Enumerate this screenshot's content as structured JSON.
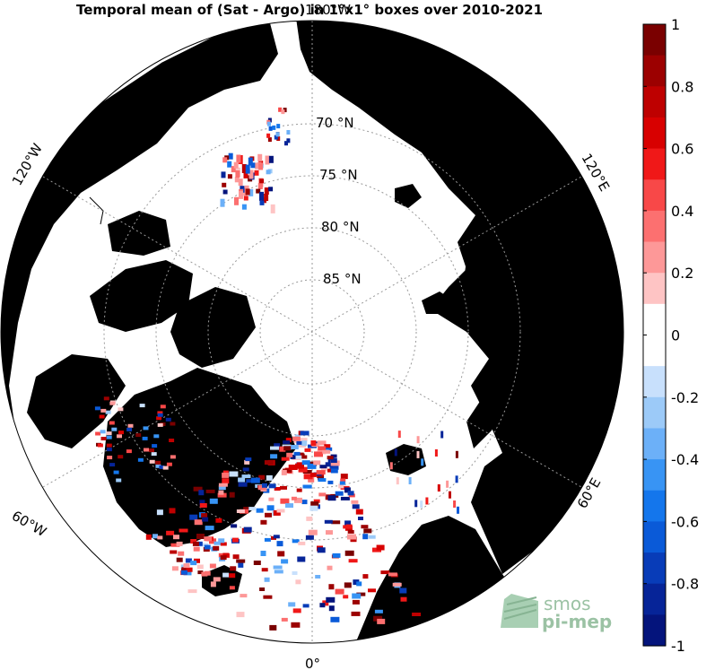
{
  "map": {
    "title": "Temporal mean of (Sat - Argo) in 1°x1° boxes over 2010-2021",
    "projection": "north-polar-stereographic",
    "colors": {
      "land": "#7f7f7f",
      "ocean": "#ffffff",
      "coast": "#000000",
      "graticule": "#9a9a9a"
    },
    "latitude_labels": [
      "70 °N",
      "75 °N",
      "80 °N",
      "85 °N"
    ],
    "longitude_labels": {
      "top": "180°W",
      "bottom": "0°",
      "left_lower": "60°W",
      "left_upper": "120°W",
      "right_lower": "60°E",
      "right_upper": "120°E"
    },
    "data_regions": [
      {
        "region": "Barents Sea / Norwegian Sea",
        "dominant_sign": "mixed",
        "notes": "dense mixed red/blue boxes"
      },
      {
        "region": "Beaufort Sea",
        "dominant_sign": "positive"
      },
      {
        "region": "Baffin Bay",
        "dominant_sign": "mixed"
      }
    ]
  },
  "colorbar": {
    "ticks": [
      "1",
      "0.8",
      "0.6",
      "0.4",
      "0.2",
      "0",
      "-0.2",
      "-0.4",
      "-0.6",
      "-0.8",
      "-1"
    ],
    "range": [
      -1,
      1
    ],
    "step": 0.1,
    "colors_top_to_bottom": [
      "#7a0000",
      "#9c0000",
      "#be0000",
      "#d80000",
      "#f01818",
      "#f84848",
      "#fc7070",
      "#fd9898",
      "#fec4c4",
      "#ffffff",
      "#ffffff",
      "#c8e0fc",
      "#9ccaf8",
      "#6cb0f8",
      "#3894f4",
      "#1476ec",
      "#0a5ad8",
      "#083cb8",
      "#062498",
      "#04147c"
    ]
  },
  "logo": {
    "line1": "smos",
    "line2": "pi-mep",
    "color": "#7aae86"
  }
}
